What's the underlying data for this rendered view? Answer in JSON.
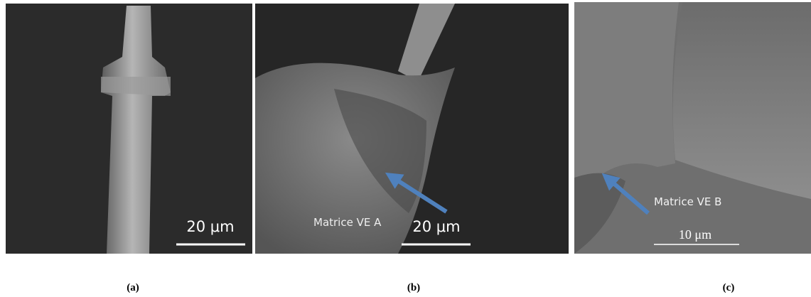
{
  "panels": [
    {
      "scale_bar": "20 μm",
      "caption": "(a)"
    },
    {
      "annotation": "Matrice VE A",
      "scale_bar": "20 μm",
      "caption": "(b)"
    },
    {
      "annotation": "Matrice VE B",
      "scale_bar": "10 μm",
      "caption": "(c)"
    }
  ]
}
